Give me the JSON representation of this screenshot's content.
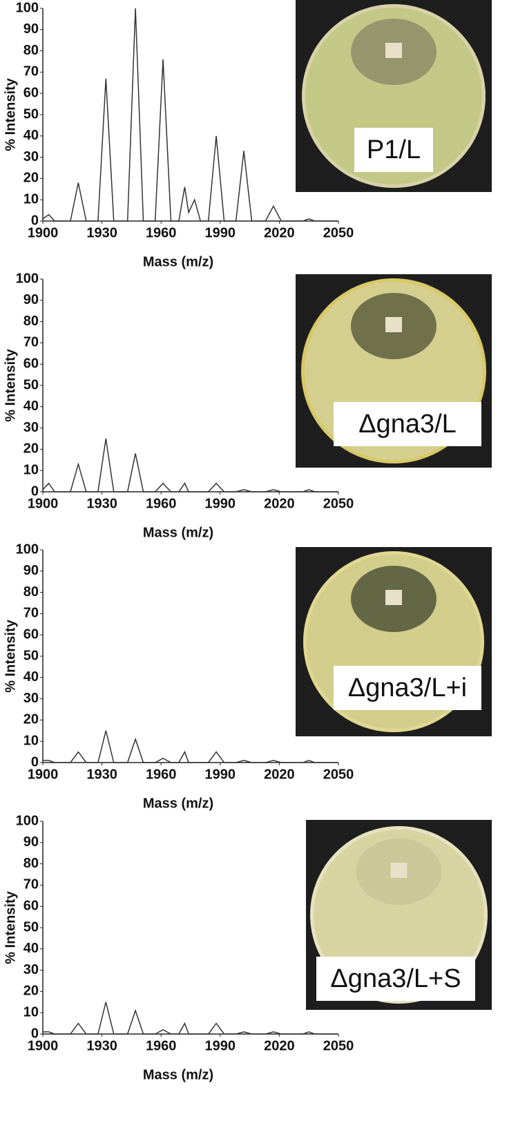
{
  "chart_data": [
    {
      "type": "line",
      "x_label": "Mass (m/z)",
      "y_label": "% Intensity",
      "annotation": "P1/L",
      "xlim": [
        1900,
        2050
      ],
      "ylim": [
        0,
        100
      ],
      "xticks": [
        1900,
        1930,
        1960,
        1990,
        2020,
        2050
      ],
      "yticks": [
        0,
        10,
        20,
        30,
        40,
        50,
        60,
        70,
        80,
        90,
        100
      ],
      "x": [
        1900,
        1903,
        1906,
        1914,
        1918,
        1922,
        1928,
        1932,
        1936,
        1943,
        1947,
        1951,
        1957,
        1961,
        1965,
        1969,
        1972,
        1974,
        1977,
        1980,
        1984,
        1988,
        1992,
        1998,
        2002,
        2006,
        2013,
        2017,
        2021,
        2032,
        2035,
        2038,
        2050
      ],
      "series": [
        {
          "color": "#333333",
          "values": [
            1,
            3,
            0,
            0,
            18,
            0,
            0,
            67,
            0,
            0,
            100,
            0,
            0,
            76,
            0,
            0,
            16,
            4,
            10,
            0,
            0,
            40,
            0,
            0,
            33,
            0,
            0,
            7,
            0,
            0,
            1,
            0,
            0
          ]
        }
      ]
    },
    {
      "type": "line",
      "x_label": "Mass (m/z)",
      "y_label": "% Intensity",
      "annotation": "Δgna3/L",
      "xlim": [
        1900,
        2050
      ],
      "ylim": [
        0,
        100
      ],
      "xticks": [
        1900,
        1930,
        1960,
        1990,
        2020,
        2050
      ],
      "yticks": [
        0,
        10,
        20,
        30,
        40,
        50,
        60,
        70,
        80,
        90,
        100
      ],
      "x": [
        1900,
        1903,
        1906,
        1914,
        1918,
        1922,
        1928,
        1932,
        1936,
        1943,
        1947,
        1951,
        1957,
        1961,
        1965,
        1969,
        1972,
        1974,
        1977,
        1980,
        1984,
        1988,
        1992,
        1998,
        2002,
        2006,
        2013,
        2017,
        2021,
        2032,
        2035,
        2038,
        2050
      ],
      "series": [
        {
          "color": "#333333",
          "values": [
            1,
            4,
            0,
            0,
            13,
            0,
            0,
            25,
            0,
            0,
            18,
            0,
            0,
            4,
            0,
            0,
            4,
            0,
            0,
            0,
            0,
            4,
            0,
            0,
            1,
            0,
            0,
            1,
            0,
            0,
            1,
            0,
            0
          ]
        }
      ]
    },
    {
      "type": "line",
      "x_label": "Mass (m/z)",
      "y_label": "% Intensity",
      "annotation": "Δgna3/L+i",
      "xlim": [
        1900,
        2050
      ],
      "ylim": [
        0,
        100
      ],
      "xticks": [
        1900,
        1930,
        1960,
        1990,
        2020,
        2050
      ],
      "yticks": [
        0,
        10,
        20,
        30,
        40,
        50,
        60,
        70,
        80,
        90,
        100
      ],
      "x": [
        1900,
        1903,
        1906,
        1914,
        1918,
        1922,
        1928,
        1932,
        1936,
        1943,
        1947,
        1951,
        1957,
        1961,
        1965,
        1969,
        1972,
        1974,
        1977,
        1980,
        1984,
        1988,
        1992,
        1998,
        2002,
        2006,
        2013,
        2017,
        2021,
        2032,
        2035,
        2038,
        2050
      ],
      "series": [
        {
          "color": "#333333",
          "values": [
            1,
            1,
            0,
            0,
            5,
            0,
            0,
            15,
            0,
            0,
            11,
            0,
            0,
            2,
            0,
            0,
            5,
            0,
            0,
            0,
            0,
            5,
            0,
            0,
            1,
            0,
            0,
            1,
            0,
            0,
            1,
            0,
            0
          ]
        }
      ]
    },
    {
      "type": "line",
      "x_label": "Mass (m/z)",
      "y_label": "% Intensity",
      "annotation": "Δgna3/L+S",
      "xlim": [
        1900,
        2050
      ],
      "ylim": [
        0,
        100
      ],
      "xticks": [
        1900,
        1930,
        1960,
        1990,
        2020,
        2050
      ],
      "yticks": [
        0,
        10,
        20,
        30,
        40,
        50,
        60,
        70,
        80,
        90,
        100
      ],
      "x": [
        1900,
        1903,
        1906,
        1914,
        1918,
        1922,
        1928,
        1932,
        1936,
        1943,
        1947,
        1951,
        1957,
        1961,
        1965,
        1969,
        1972,
        1974,
        1977,
        1980,
        1984,
        1988,
        1992,
        1998,
        2002,
        2006,
        2013,
        2017,
        2021,
        2032,
        2035,
        2038,
        2050
      ],
      "series": [
        {
          "color": "#333333",
          "values": [
            1,
            1,
            0,
            0,
            5,
            0,
            0,
            15,
            0,
            0,
            11,
            0,
            0,
            2,
            0,
            0,
            5,
            0,
            0,
            0,
            0,
            5,
            0,
            0,
            1,
            0,
            0,
            1,
            0,
            0,
            1,
            0,
            0
          ]
        }
      ]
    }
  ]
}
